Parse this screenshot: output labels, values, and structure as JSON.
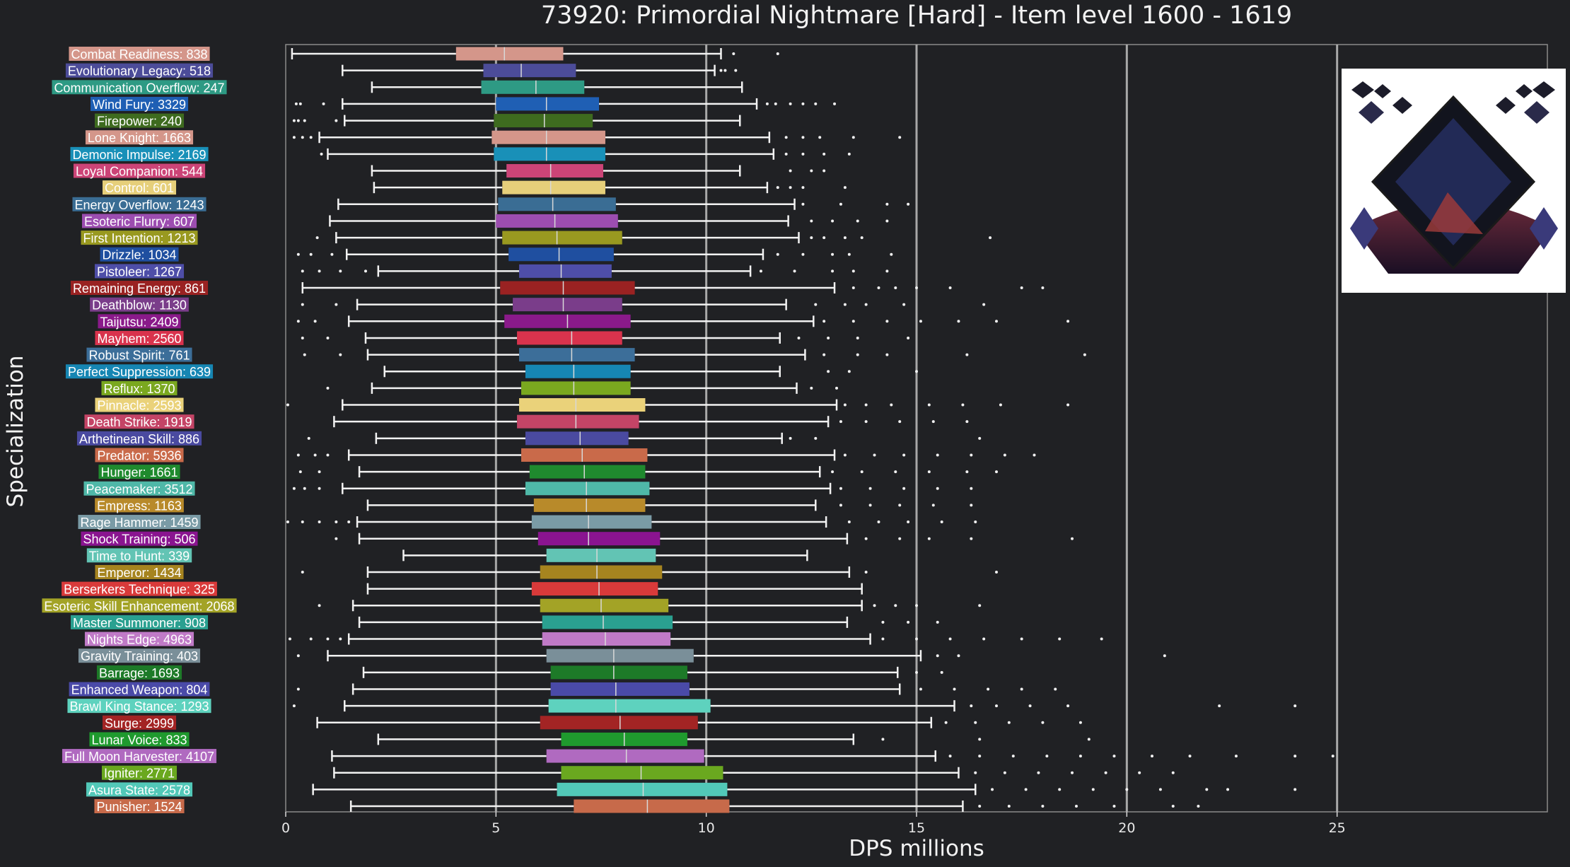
{
  "chart_data": {
    "type": "box",
    "title": "73920: Primordial Nightmare [Hard] - Item level 1600 - 1619",
    "xlabel": "DPS millions",
    "ylabel": "Specialization",
    "xlim": [
      0,
      30
    ],
    "xticks": [
      0,
      5,
      10,
      15,
      20,
      25
    ],
    "grid_x": [
      5,
      10,
      15,
      20,
      25
    ],
    "orientation": "horizontal",
    "categories": [
      {
        "label": "Combat Readiness: 838",
        "color": "#d4968a",
        "whisker_low": 0.15,
        "q1": 4.05,
        "median": 5.2,
        "q3": 6.6,
        "whisker_high": 10.35,
        "outliers": [
          10.65,
          11.7
        ]
      },
      {
        "label": "Evolutionary Legacy: 518",
        "color": "#4c4c99",
        "whisker_low": 1.35,
        "q1": 4.7,
        "median": 5.6,
        "q3": 6.9,
        "whisker_high": 10.2,
        "outliers": [
          10.35,
          10.45,
          10.7
        ]
      },
      {
        "label": "Communication Overflow: 247",
        "color": "#2e9a84",
        "whisker_low": 2.05,
        "q1": 4.65,
        "median": 5.95,
        "q3": 7.1,
        "whisker_high": 10.85,
        "outliers": []
      },
      {
        "label": "Wind Fury: 3329",
        "color": "#1f5fb4",
        "whisker_low": 1.35,
        "q1": 5.0,
        "median": 6.2,
        "q3": 7.45,
        "whisker_high": 11.2,
        "outliers": [
          0.25,
          0.35,
          0.9,
          11.45,
          11.65,
          12.0,
          12.3,
          12.6,
          13.05
        ]
      },
      {
        "label": "Firepower: 240",
        "color": "#3e6b1f",
        "whisker_low": 1.4,
        "q1": 4.95,
        "median": 6.15,
        "q3": 7.3,
        "whisker_high": 10.8,
        "outliers": [
          0.2,
          0.3,
          0.45,
          1.2
        ]
      },
      {
        "label": "Lone Knight: 1663",
        "color": "#d4968a",
        "whisker_low": 0.8,
        "q1": 4.9,
        "median": 6.2,
        "q3": 7.6,
        "whisker_high": 11.5,
        "outliers": [
          0.2,
          0.4,
          0.6,
          11.9,
          12.3,
          12.7,
          13.5,
          14.6
        ]
      },
      {
        "label": "Demonic Impulse: 2169",
        "color": "#1990b8",
        "whisker_low": 1.0,
        "q1": 4.95,
        "median": 6.2,
        "q3": 7.6,
        "whisker_high": 11.6,
        "outliers": [
          0.85,
          11.9,
          12.3,
          12.8,
          13.4
        ]
      },
      {
        "label": "Loyal Companion: 544",
        "color": "#cc4477",
        "whisker_low": 2.05,
        "q1": 5.25,
        "median": 6.3,
        "q3": 7.55,
        "whisker_high": 10.8,
        "outliers": [
          12.0,
          12.5,
          12.8
        ]
      },
      {
        "label": "Control: 601",
        "color": "#e6cf7a",
        "whisker_low": 2.1,
        "q1": 5.15,
        "median": 6.3,
        "q3": 7.6,
        "whisker_high": 11.45,
        "outliers": [
          11.7,
          12.0,
          12.3,
          13.3
        ]
      },
      {
        "label": "Energy Overflow: 1243",
        "color": "#3a6d94",
        "whisker_low": 1.25,
        "q1": 5.05,
        "median": 6.35,
        "q3": 7.85,
        "whisker_high": 12.1,
        "outliers": [
          12.3,
          13.2,
          14.3,
          14.8
        ]
      },
      {
        "label": "Esoteric Flurry: 607",
        "color": "#9c4db0",
        "whisker_low": 1.05,
        "q1": 5.0,
        "median": 6.4,
        "q3": 7.9,
        "whisker_high": 11.95,
        "outliers": [
          12.5,
          13.0,
          13.6,
          14.3
        ]
      },
      {
        "label": "First Intention: 1213",
        "color": "#999920",
        "whisker_low": 1.2,
        "q1": 5.15,
        "median": 6.45,
        "q3": 8.0,
        "whisker_high": 12.2,
        "outliers": [
          0.75,
          12.5,
          12.8,
          13.3,
          13.7,
          16.75
        ]
      },
      {
        "label": "Drizzle: 1034",
        "color": "#1f4fa0",
        "whisker_low": 1.45,
        "q1": 5.3,
        "median": 6.5,
        "q3": 7.8,
        "whisker_high": 11.35,
        "outliers": [
          0.3,
          0.6,
          1.1,
          11.7,
          12.3,
          13.0,
          13.4,
          14.4
        ]
      },
      {
        "label": "Pistoleer: 1267",
        "color": "#4e4ea8",
        "whisker_low": 2.2,
        "q1": 5.55,
        "median": 6.55,
        "q3": 7.75,
        "whisker_high": 11.05,
        "outliers": [
          0.4,
          0.8,
          1.3,
          1.9,
          11.3,
          12.1,
          13.0,
          13.5,
          14.3
        ]
      },
      {
        "label": "Remaining Energy: 861",
        "color": "#9a2222",
        "whisker_low": 0.4,
        "q1": 5.1,
        "median": 6.6,
        "q3": 8.3,
        "whisker_high": 13.05,
        "outliers": [
          13.5,
          14.1,
          14.5,
          15.0,
          15.8,
          17.5,
          18.0
        ]
      },
      {
        "label": "Deathblow: 1130",
        "color": "#7a3d8a",
        "whisker_low": 1.7,
        "q1": 5.4,
        "median": 6.6,
        "q3": 8.0,
        "whisker_high": 11.9,
        "outliers": [
          0.4,
          1.2,
          12.6,
          13.3,
          13.8,
          14.7,
          16.6
        ]
      },
      {
        "label": "Taijutsu: 2409",
        "color": "#8a1a8a",
        "whisker_low": 1.5,
        "q1": 5.2,
        "median": 6.7,
        "q3": 8.2,
        "whisker_high": 12.55,
        "outliers": [
          0.3,
          0.7,
          12.8,
          13.5,
          14.3,
          15.1,
          16.0,
          16.9,
          18.6
        ]
      },
      {
        "label": "Mayhem: 2560",
        "color": "#d9334d",
        "whisker_low": 1.9,
        "q1": 5.5,
        "median": 6.8,
        "q3": 8.0,
        "whisker_high": 11.75,
        "outliers": [
          0.4,
          1.0,
          12.2,
          12.9,
          13.6,
          14.8
        ]
      },
      {
        "label": "Robust Spirit: 761",
        "color": "#3c6e99",
        "whisker_low": 1.95,
        "q1": 5.55,
        "median": 6.8,
        "q3": 8.3,
        "whisker_high": 12.35,
        "outliers": [
          0.45,
          1.3,
          12.8,
          13.6,
          14.3,
          16.2,
          19.0
        ]
      },
      {
        "label": "Perfect Suppression: 639",
        "color": "#1686b3",
        "whisker_low": 2.35,
        "q1": 5.7,
        "median": 6.85,
        "q3": 8.2,
        "whisker_high": 11.75,
        "outliers": [
          12.9,
          13.4,
          15.0
        ]
      },
      {
        "label": "Reflux: 1370",
        "color": "#7aa81f",
        "whisker_low": 2.05,
        "q1": 5.6,
        "median": 6.85,
        "q3": 8.2,
        "whisker_high": 12.15,
        "outliers": [
          1.0,
          12.5,
          13.1
        ]
      },
      {
        "label": "Pinnacle: 2593",
        "color": "#ead27a",
        "whisker_low": 1.35,
        "q1": 5.55,
        "median": 6.9,
        "q3": 8.55,
        "whisker_high": 13.1,
        "outliers": [
          0.05,
          13.3,
          13.8,
          14.4,
          15.3,
          16.1,
          17.0,
          18.6
        ]
      },
      {
        "label": "Death Strike: 1919",
        "color": "#c44466",
        "whisker_low": 1.15,
        "q1": 5.5,
        "median": 6.9,
        "q3": 8.4,
        "whisker_high": 12.9,
        "outliers": [
          13.2,
          13.8,
          14.6,
          15.4,
          16.2
        ]
      },
      {
        "label": "Arthetinean Skill: 886",
        "color": "#4a4aa0",
        "whisker_low": 2.15,
        "q1": 5.7,
        "median": 7.0,
        "q3": 8.15,
        "whisker_high": 11.8,
        "outliers": [
          0.55,
          12.0,
          12.6,
          16.5
        ]
      },
      {
        "label": "Predator: 5936",
        "color": "#c96a4a",
        "whisker_low": 1.5,
        "q1": 5.6,
        "median": 7.05,
        "q3": 8.6,
        "whisker_high": 13.05,
        "outliers": [
          0.3,
          0.7,
          1.0,
          13.3,
          14.0,
          14.7,
          15.5,
          16.3,
          17.1,
          17.8
        ]
      },
      {
        "label": "Hunger: 1661",
        "color": "#1f8a2e",
        "whisker_low": 1.75,
        "q1": 5.8,
        "median": 7.1,
        "q3": 8.55,
        "whisker_high": 12.7,
        "outliers": [
          0.35,
          0.8,
          13.0,
          13.7,
          14.5,
          15.3,
          16.2,
          16.9
        ]
      },
      {
        "label": "Peacemaker: 3512",
        "color": "#4fb8a8",
        "whisker_low": 1.35,
        "q1": 5.7,
        "median": 7.15,
        "q3": 8.65,
        "whisker_high": 12.95,
        "outliers": [
          0.2,
          0.45,
          0.8,
          13.2,
          13.9,
          14.7,
          15.5,
          16.3
        ]
      },
      {
        "label": "Empress: 1163",
        "color": "#b88a2a",
        "whisker_low": 1.95,
        "q1": 5.9,
        "median": 7.15,
        "q3": 8.55,
        "whisker_high": 12.6,
        "outliers": [
          13.2,
          13.9,
          14.6,
          15.4,
          16.3
        ]
      },
      {
        "label": "Rage Hammer: 1459",
        "color": "#7a9ba6",
        "whisker_low": 1.7,
        "q1": 5.85,
        "median": 7.2,
        "q3": 8.7,
        "whisker_high": 12.85,
        "outliers": [
          0.05,
          0.4,
          0.8,
          1.2,
          1.5,
          13.4,
          14.1,
          14.8,
          15.6,
          16.4
        ]
      },
      {
        "label": "Shock Training: 506",
        "color": "#8a1490",
        "whisker_low": 1.75,
        "q1": 6.0,
        "median": 7.2,
        "q3": 8.9,
        "whisker_high": 13.35,
        "outliers": [
          1.2,
          13.8,
          14.6,
          15.3,
          16.3,
          18.7
        ]
      },
      {
        "label": "Time to Hunt: 339",
        "color": "#62c4b4",
        "whisker_low": 2.8,
        "q1": 6.2,
        "median": 7.4,
        "q3": 8.8,
        "whisker_high": 12.4,
        "outliers": []
      },
      {
        "label": "Emperor: 1434",
        "color": "#a6841f",
        "whisker_low": 1.95,
        "q1": 6.05,
        "median": 7.4,
        "q3": 8.95,
        "whisker_high": 13.4,
        "outliers": [
          0.4,
          13.8,
          16.9
        ]
      },
      {
        "label": "Berserkers Technique: 325",
        "color": "#d93a3a",
        "whisker_low": 1.95,
        "q1": 5.85,
        "median": 7.45,
        "q3": 8.85,
        "whisker_high": 13.7,
        "outliers": []
      },
      {
        "label": "Esoteric Skill Enhancement: 2068",
        "color": "#a3a326",
        "whisker_low": 1.6,
        "q1": 6.05,
        "median": 7.5,
        "q3": 9.1,
        "whisker_high": 13.7,
        "outliers": [
          0.8,
          14.0,
          14.5,
          15.0,
          16.5
        ]
      },
      {
        "label": "Master Summoner: 908",
        "color": "#2aa090",
        "whisker_low": 1.75,
        "q1": 6.1,
        "median": 7.55,
        "q3": 9.2,
        "whisker_high": 13.35,
        "outliers": [
          14.2,
          14.8,
          15.5
        ]
      },
      {
        "label": "Nights Edge: 4963",
        "color": "#c07ac7",
        "whisker_low": 1.5,
        "q1": 6.1,
        "median": 7.6,
        "q3": 9.15,
        "whisker_high": 13.9,
        "outliers": [
          0.1,
          0.6,
          1.0,
          1.3,
          14.2,
          15.0,
          15.8,
          16.6,
          17.5,
          18.4,
          19.4
        ]
      },
      {
        "label": "Gravity Training: 403",
        "color": "#7a8f99",
        "whisker_low": 1.0,
        "q1": 6.2,
        "median": 7.8,
        "q3": 9.7,
        "whisker_high": 15.1,
        "outliers": [
          0.3,
          15.5,
          16.0,
          20.9
        ]
      },
      {
        "label": "Barrage: 1693",
        "color": "#1d7a28",
        "whisker_low": 1.85,
        "q1": 6.3,
        "median": 7.8,
        "q3": 9.55,
        "whisker_high": 14.55,
        "outliers": [
          15.0,
          15.6
        ]
      },
      {
        "label": "Enhanced Weapon: 804",
        "color": "#4a4aa8",
        "whisker_low": 1.6,
        "q1": 6.3,
        "median": 7.85,
        "q3": 9.6,
        "whisker_high": 14.6,
        "outliers": [
          0.3,
          15.1,
          15.9,
          16.7,
          17.5,
          18.3
        ]
      },
      {
        "label": "Brawl King Stance: 1293",
        "color": "#5ed2be",
        "whisker_low": 1.4,
        "q1": 6.25,
        "median": 7.85,
        "q3": 10.1,
        "whisker_high": 15.9,
        "outliers": [
          0.2,
          16.3,
          16.9,
          17.7,
          18.6,
          22.2,
          24.0
        ]
      },
      {
        "label": "Surge: 2999",
        "color": "#a32424",
        "whisker_low": 0.75,
        "q1": 6.05,
        "median": 7.95,
        "q3": 9.8,
        "whisker_high": 15.35,
        "outliers": [
          15.7,
          16.4,
          17.2,
          18.0,
          18.9
        ]
      },
      {
        "label": "Lunar Voice: 833",
        "color": "#1f9a2e",
        "whisker_low": 2.2,
        "q1": 6.55,
        "median": 8.05,
        "q3": 9.55,
        "whisker_high": 13.5,
        "outliers": [
          14.2,
          16.5,
          19.1
        ]
      },
      {
        "label": "Full Moon Harvester: 4107",
        "color": "#b06ac0",
        "whisker_low": 1.1,
        "q1": 6.2,
        "median": 8.1,
        "q3": 9.95,
        "whisker_high": 15.45,
        "outliers": [
          15.8,
          16.5,
          17.3,
          18.1,
          18.9,
          19.7,
          20.6,
          21.5,
          22.6,
          24.0,
          24.9
        ]
      },
      {
        "label": "Igniter: 2771",
        "color": "#6aa81f",
        "whisker_low": 1.15,
        "q1": 6.55,
        "median": 8.45,
        "q3": 10.4,
        "whisker_high": 16.0,
        "outliers": [
          16.4,
          17.1,
          17.9,
          18.7,
          19.5,
          20.3,
          21.1
        ]
      },
      {
        "label": "Asura State: 2578",
        "color": "#52c8b8",
        "whisker_low": 0.65,
        "q1": 6.45,
        "median": 8.5,
        "q3": 10.5,
        "whisker_high": 16.4,
        "outliers": [
          16.8,
          17.6,
          18.4,
          19.2,
          20.0,
          20.8,
          21.9,
          22.4,
          24.0
        ]
      },
      {
        "label": "Punisher: 1524",
        "color": "#c76a4a",
        "whisker_low": 1.55,
        "q1": 6.85,
        "median": 8.6,
        "q3": 10.55,
        "whisker_high": 16.1,
        "outliers": [
          16.5,
          17.2,
          18.0,
          18.8,
          19.7,
          21.1,
          21.7
        ]
      }
    ]
  }
}
